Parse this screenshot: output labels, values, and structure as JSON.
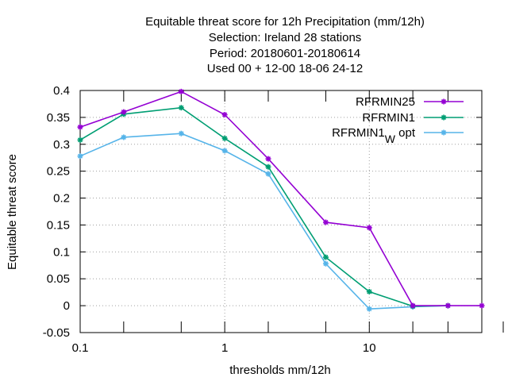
{
  "chart_data": {
    "type": "line",
    "title_lines": [
      "Equitable threat score  for 12h Precipitation (mm/12h)",
      "Selection: Ireland      28 stations",
      "Period: 20180601-20180614",
      "Used  00 + 12-00 18-06 24-12"
    ],
    "xlabel": "thresholds mm/12h",
    "ylabel": "Equitable threat score",
    "x_scale": "log",
    "xlim": [
      0.1,
      60
    ],
    "ylim": [
      -0.05,
      0.4
    ],
    "x_ticks": [
      {
        "value": 0.1,
        "label": "0.1"
      },
      {
        "value": 1,
        "label": "1"
      },
      {
        "value": 10,
        "label": "10"
      }
    ],
    "x_minor_ticks": [
      0.2,
      0.5,
      2,
      5,
      20,
      35
    ],
    "y_ticks": [
      {
        "value": 0.4,
        "label": "0.4"
      },
      {
        "value": 0.35,
        "label": "0.35"
      },
      {
        "value": 0.3,
        "label": "0.3"
      },
      {
        "value": 0.25,
        "label": "0.25"
      },
      {
        "value": 0.2,
        "label": "0.2"
      },
      {
        "value": 0.15,
        "label": "0.15"
      },
      {
        "value": 0.1,
        "label": "0.1"
      },
      {
        "value": 0.05,
        "label": "0.05"
      },
      {
        "value": 0,
        "label": "0"
      },
      {
        "value": -0.05,
        "label": "-0.05"
      }
    ],
    "grid": true,
    "legend_position": "top-right",
    "series": [
      {
        "name": "RFRMIN25",
        "color": "#9400d3",
        "x": [
          0.1,
          0.2,
          0.5,
          1,
          2,
          5,
          10,
          20,
          35,
          60
        ],
        "y": [
          0.332,
          0.36,
          0.398,
          0.355,
          0.273,
          0.155,
          0.145,
          0.0,
          0.0,
          0.0
        ]
      },
      {
        "name": "RFRMIN1",
        "color": "#009e73",
        "x": [
          0.1,
          0.2,
          0.5,
          1,
          2,
          5,
          10,
          20,
          35
        ],
        "y": [
          0.308,
          0.356,
          0.368,
          0.311,
          0.258,
          0.09,
          0.026,
          -0.001,
          0.0
        ]
      },
      {
        "name": "RFRMIN1",
        "name_subscript": "W",
        "name_suffix": "opt",
        "color": "#56b4e9",
        "x": [
          0.1,
          0.2,
          0.5,
          1,
          2,
          5,
          10,
          20,
          35
        ],
        "y": [
          0.278,
          0.313,
          0.32,
          0.288,
          0.245,
          0.078,
          -0.006,
          -0.002,
          0.0
        ]
      }
    ]
  }
}
